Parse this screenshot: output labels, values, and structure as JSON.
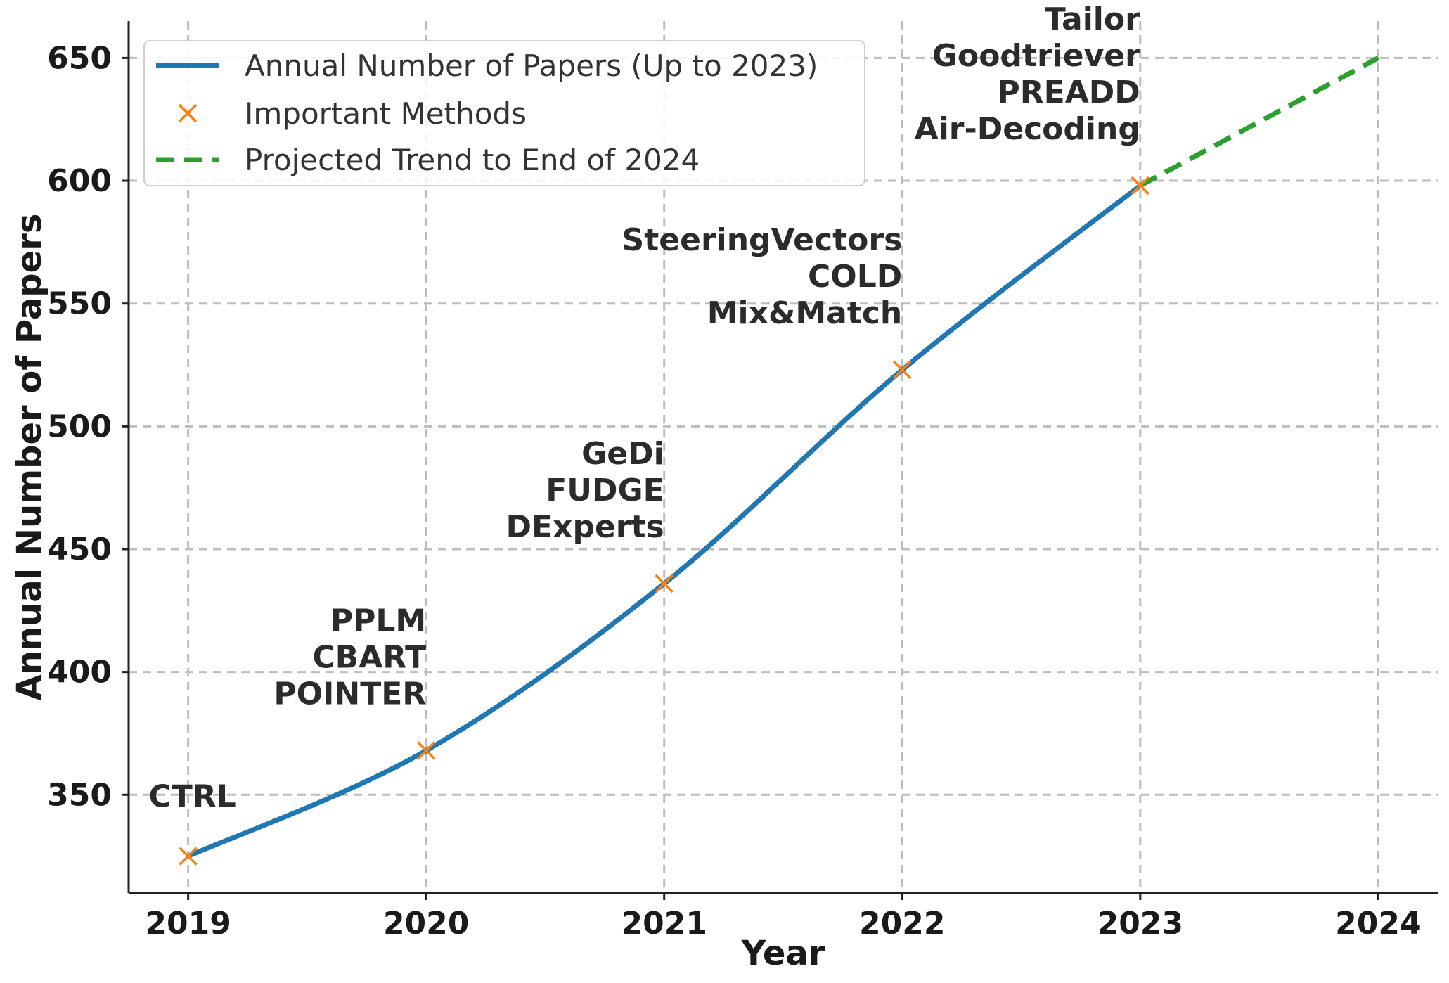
{
  "chart_data": {
    "type": "line",
    "xlabel": "Year",
    "ylabel": "Annual Number of Papers",
    "xlim": [
      2018.75,
      2024.25
    ],
    "ylim": [
      310,
      665
    ],
    "x_ticks": [
      2019,
      2020,
      2021,
      2022,
      2023,
      2024
    ],
    "y_ticks": [
      350,
      400,
      450,
      500,
      550,
      600,
      650
    ],
    "grid": true,
    "legend_position": "top-left",
    "colors": {
      "papers": "#1f77b4",
      "methods": "#ff7f0e",
      "projection": "#2ca02c"
    },
    "series": [
      {
        "name": "Annual Number of Papers (Up to 2023)",
        "style": "solid",
        "x": [
          2019,
          2020,
          2021,
          2022,
          2023
        ],
        "y": [
          325,
          368,
          436,
          523,
          598
        ]
      },
      {
        "name": "Important Methods",
        "style": "x-marker",
        "x": [
          2019,
          2020,
          2021,
          2022,
          2023
        ],
        "y": [
          325,
          368,
          436,
          523,
          598
        ]
      },
      {
        "name": "Projected Trend to End of 2024",
        "style": "dashed",
        "x": [
          2023,
          2024
        ],
        "y": [
          598,
          650
        ]
      }
    ],
    "annotations": [
      {
        "x": 2019,
        "y": 325,
        "lines": [
          "CTRL"
        ]
      },
      {
        "x": 2020,
        "y": 368,
        "lines": [
          "PPLM",
          "CBART",
          "POINTER"
        ]
      },
      {
        "x": 2021,
        "y": 436,
        "lines": [
          "GeDi",
          "FUDGE",
          "DExperts"
        ]
      },
      {
        "x": 2022,
        "y": 523,
        "lines": [
          "SteeringVectors",
          "COLD",
          "Mix&Match"
        ]
      },
      {
        "x": 2023,
        "y": 598,
        "lines": [
          "Tailor",
          "Goodtriever",
          "PREADD",
          "Air-Decoding"
        ]
      }
    ]
  }
}
